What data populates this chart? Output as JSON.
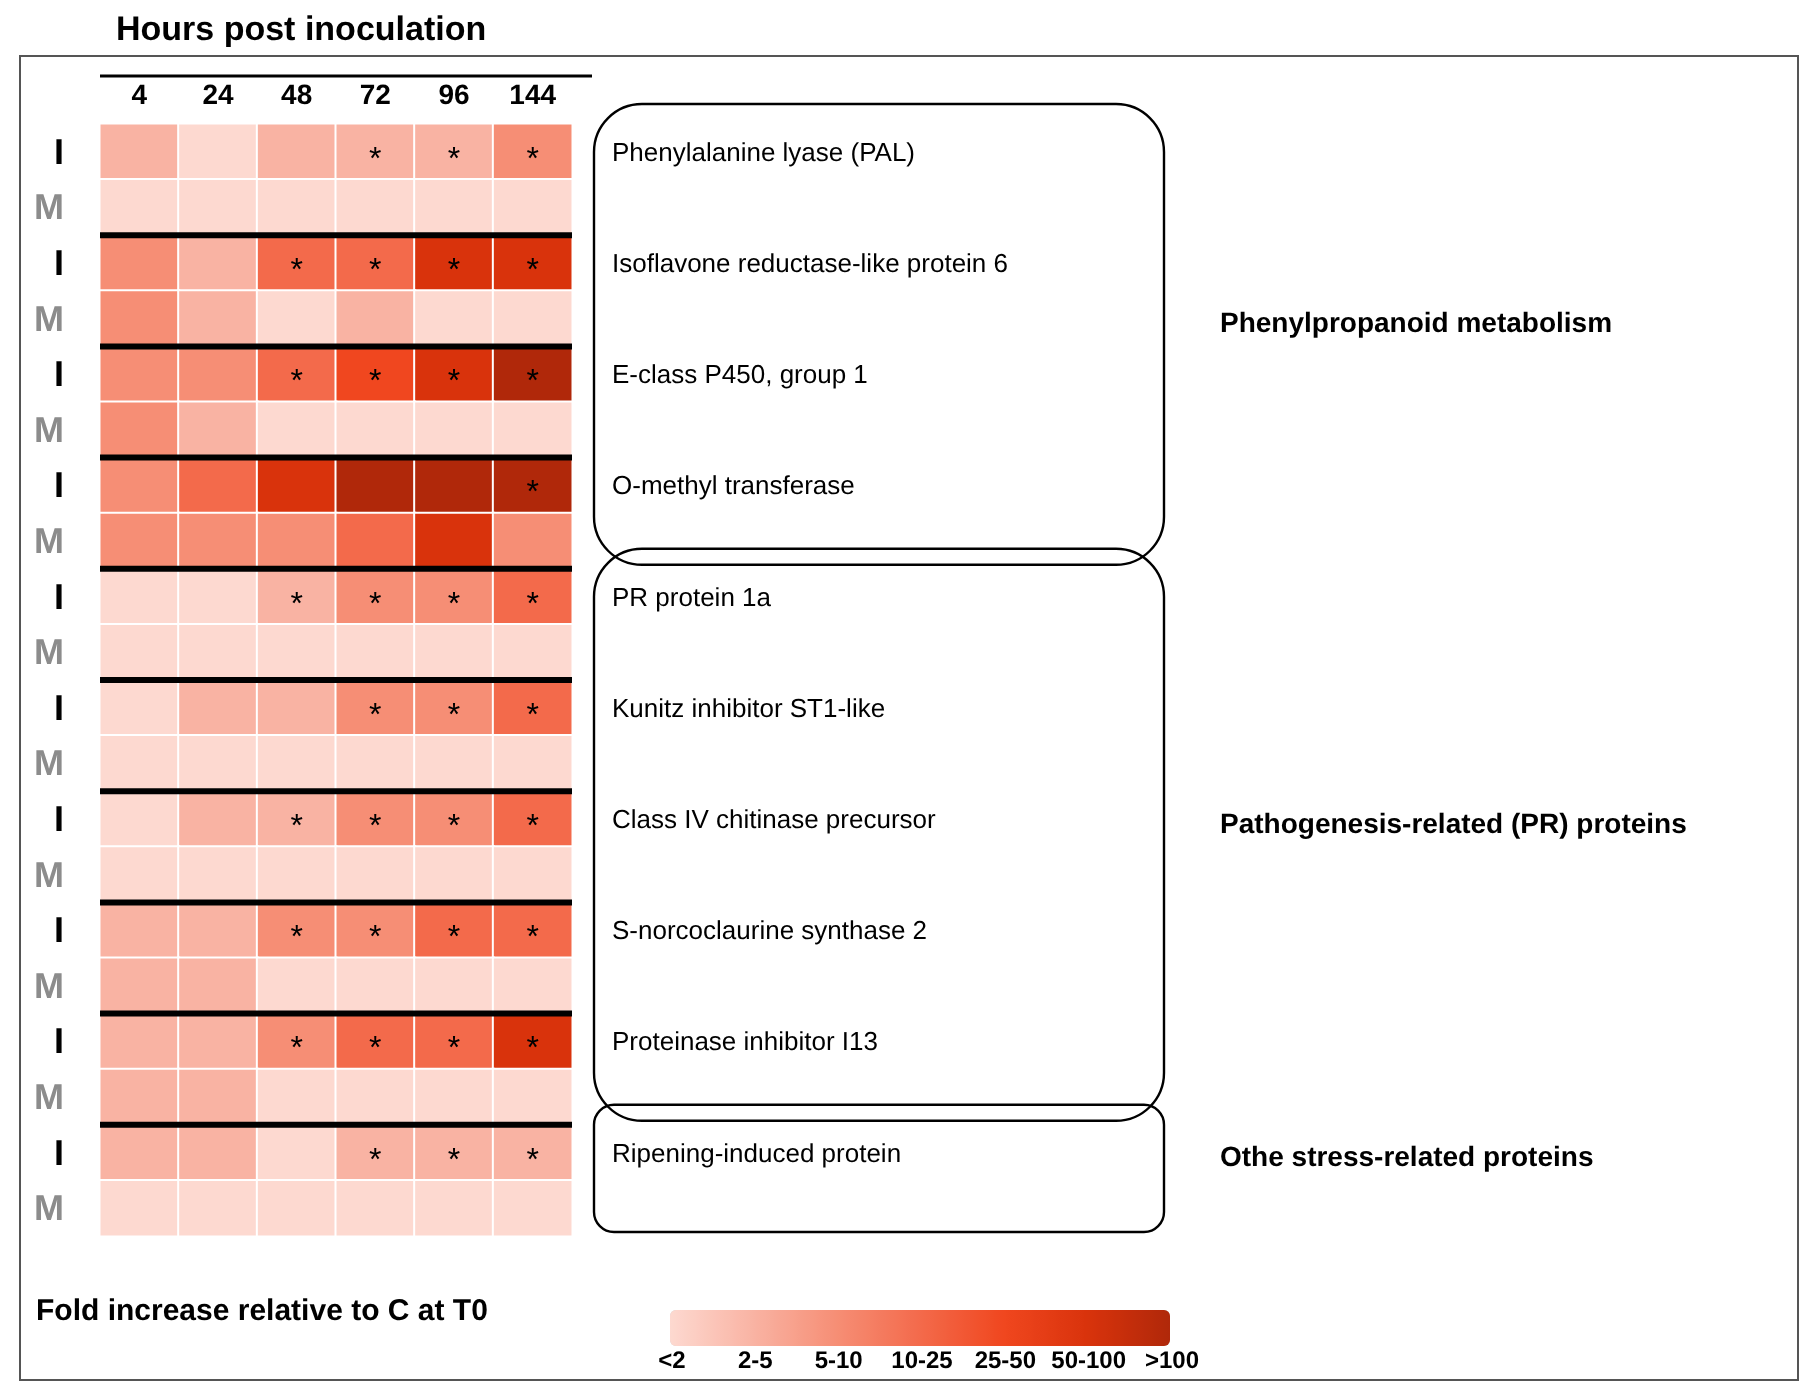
{
  "chart_data": {
    "type": "heatmap",
    "xlabel": "Hours post inoculation",
    "clabel": "Fold increase relative to C at T0",
    "categories": [
      "4",
      "24",
      "48",
      "72",
      "96",
      "144"
    ],
    "y_categories": [
      "I",
      "M",
      "I",
      "M",
      "I",
      "M",
      "I",
      "M",
      "I",
      "M",
      "I",
      "M",
      "I",
      "M",
      "I",
      "M",
      "I",
      "M",
      "I",
      "M"
    ],
    "y2_categories": [
      "Phenylalanine lyase (PAL)",
      null,
      "Isoflavone reductase-like protein 6",
      null,
      "E-class P450, group 1",
      null,
      "O-methyl transferase",
      null,
      "PR protein 1a",
      null,
      "Kunitz inhibitor ST1-like",
      null,
      "Class IV chitinase precursor",
      null,
      "S-norcoclaurine synthase 2",
      null,
      "Proteinase inhibitor I13",
      null,
      "Ripening-induced protein",
      null
    ],
    "cells": [
      [
        1,
        0,
        1,
        1,
        1,
        2
      ],
      [
        0,
        0,
        0,
        0,
        0,
        0
      ],
      [
        2,
        1,
        3,
        3,
        5,
        5
      ],
      [
        2,
        1,
        0,
        1,
        0,
        0
      ],
      [
        2,
        2,
        3,
        4,
        5,
        6
      ],
      [
        2,
        1,
        0,
        0,
        0,
        0
      ],
      [
        2,
        3,
        5,
        6,
        6,
        6
      ],
      [
        2,
        2,
        2,
        3,
        5,
        2
      ],
      [
        0,
        0,
        1,
        2,
        2,
        3
      ],
      [
        0,
        0,
        0,
        0,
        0,
        0
      ],
      [
        0,
        1,
        1,
        2,
        2,
        3
      ],
      [
        0,
        0,
        0,
        0,
        0,
        0
      ],
      [
        0,
        1,
        1,
        2,
        2,
        3
      ],
      [
        0,
        0,
        0,
        0,
        0,
        0
      ],
      [
        1,
        1,
        2,
        2,
        3,
        3
      ],
      [
        1,
        1,
        0,
        0,
        0,
        0
      ],
      [
        1,
        1,
        2,
        3,
        3,
        5
      ],
      [
        1,
        1,
        0,
        0,
        0,
        0
      ],
      [
        1,
        1,
        0,
        1,
        1,
        1
      ],
      [
        0,
        0,
        0,
        0,
        0,
        0
      ]
    ],
    "cell_labels": [
      [
        null,
        null,
        null,
        "*",
        "*",
        "*"
      ],
      [
        null,
        null,
        null,
        null,
        null,
        null
      ],
      [
        null,
        null,
        "*",
        "*",
        "*",
        "*"
      ],
      [
        null,
        null,
        null,
        null,
        null,
        null
      ],
      [
        null,
        null,
        "*",
        "*",
        "*",
        "*"
      ],
      [
        null,
        null,
        null,
        null,
        null,
        null
      ],
      [
        null,
        null,
        null,
        null,
        null,
        "*"
      ],
      [
        null,
        null,
        null,
        null,
        null,
        null
      ],
      [
        null,
        null,
        "*",
        "*",
        "*",
        "*"
      ],
      [
        null,
        null,
        null,
        null,
        null,
        null
      ],
      [
        null,
        null,
        null,
        "*",
        "*",
        "*"
      ],
      [
        null,
        null,
        null,
        null,
        null,
        null
      ],
      [
        null,
        null,
        "*",
        "*",
        "*",
        "*"
      ],
      [
        null,
        null,
        null,
        null,
        null,
        null
      ],
      [
        null,
        null,
        "*",
        "*",
        "*",
        "*"
      ],
      [
        null,
        null,
        null,
        null,
        null,
        null
      ],
      [
        null,
        null,
        "*",
        "*",
        "*",
        "*"
      ],
      [
        null,
        null,
        null,
        null,
        null,
        null
      ],
      [
        null,
        null,
        null,
        "*",
        "*",
        "*"
      ],
      [
        null,
        null,
        null,
        null,
        null,
        null
      ]
    ],
    "clim": [
      0,
      6
    ],
    "cticks": [
      {
        "value": 0,
        "label": "<2"
      },
      {
        "value": 1,
        "label": "2-5"
      },
      {
        "value": 2,
        "label": "5-10"
      },
      {
        "value": 3,
        "label": "10-25"
      },
      {
        "value": 4,
        "label": "25-50"
      },
      {
        "value": 5,
        "label": "50-100"
      },
      {
        "value": 6,
        "label": ">100"
      }
    ],
    "colors": [
      "#fdd9d0",
      "#f9b3a3",
      "#f68e75",
      "#f36a4b",
      "#f0471f",
      "#d9330c",
      "#b0280a"
    ],
    "annotations": [
      "Phenylpropanoid metabolism",
      "Pathogenesis-related (PR) proteins",
      "Othe stress-related proteins"
    ]
  }
}
